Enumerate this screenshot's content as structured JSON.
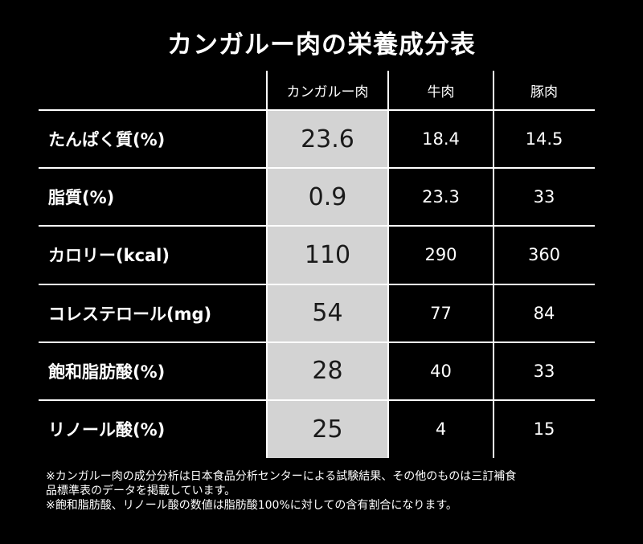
{
  "title": "カンガルー肉の栄養成分表",
  "colors": {
    "background": "#000000",
    "text": "#ffffff",
    "highlight_column": "#d3d3d3",
    "highlight_text": "#1a1a1a",
    "grid": "#ffffff"
  },
  "chart_data": {
    "type": "table",
    "title": "カンガルー肉の栄養成分表",
    "columns": [
      "カンガルー肉",
      "牛肉",
      "豚肉"
    ],
    "highlighted_column": "カンガルー肉",
    "rows": [
      {
        "label": "たんぱく質(%)",
        "values": [
          "23.6",
          "18.4",
          "14.5"
        ]
      },
      {
        "label": "脂質(%)",
        "values": [
          "0.9",
          "23.3",
          "33"
        ]
      },
      {
        "label": "カロリー(kcal)",
        "values": [
          "110",
          "290",
          "360"
        ]
      },
      {
        "label": "コレステロール(mg)",
        "values": [
          "54",
          "77",
          "84"
        ]
      },
      {
        "label": "飽和脂肪酸(%)",
        "values": [
          "28",
          "40",
          "33"
        ]
      },
      {
        "label": "リノール酸(%)",
        "values": [
          "25",
          "4",
          "15"
        ]
      }
    ]
  },
  "footnotes": [
    "※カンガルー肉の成分分析は日本食品分析センターによる試験結果、その他のものは三訂補食",
    "品標準表のデータを掲載しています。",
    "※飽和脂肪酸、リノール酸の数値は脂肪酸100%に対しての含有割合になります。"
  ]
}
